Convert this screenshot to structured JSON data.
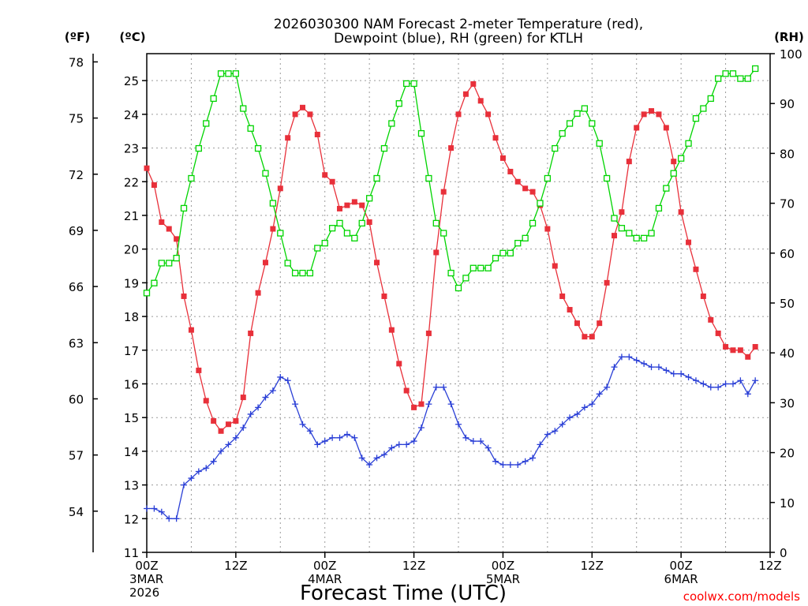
{
  "chart_data": {
    "type": "line",
    "title_lines": [
      "2026030300 NAM Forecast 2-meter Temperature (red),",
      "Dewpoint (blue), RH (green) for KTLH"
    ],
    "xlabel": "Forecast Time (UTC)",
    "credit": "coolwx.com/models",
    "unit_labels": {
      "fahrenheit": "(ºF)",
      "celsius": "(ºC)",
      "rh": "(RH)"
    },
    "x_unit": "forecast hour",
    "x_range": [
      0,
      84
    ],
    "x_ticks": [
      {
        "hour": 0,
        "lines": [
          "00Z",
          "3MAR",
          "2026"
        ]
      },
      {
        "hour": 12,
        "lines": [
          "12Z"
        ]
      },
      {
        "hour": 24,
        "lines": [
          "00Z",
          "4MAR"
        ]
      },
      {
        "hour": 36,
        "lines": [
          "12Z"
        ]
      },
      {
        "hour": 48,
        "lines": [
          "00Z",
          "5MAR"
        ]
      },
      {
        "hour": 60,
        "lines": [
          "12Z"
        ]
      },
      {
        "hour": 72,
        "lines": [
          "00Z",
          "6MAR"
        ]
      },
      {
        "hour": 84,
        "lines": [
          "12Z"
        ]
      }
    ],
    "y_celsius_range": [
      11,
      25.8
    ],
    "y_celsius_ticks": [
      11,
      12,
      13,
      14,
      15,
      16,
      17,
      18,
      19,
      20,
      21,
      22,
      23,
      24,
      25
    ],
    "y_fahrenheit_ticks": [
      54,
      57,
      60,
      63,
      66,
      69,
      72,
      75,
      78
    ],
    "y_rh_range": [
      0,
      100
    ],
    "y_rh_ticks": [
      0,
      10,
      20,
      30,
      40,
      50,
      60,
      70,
      80,
      90,
      100
    ],
    "grid": "dotted",
    "hours": [
      0,
      1,
      2,
      3,
      4,
      5,
      6,
      7,
      8,
      9,
      10,
      11,
      12,
      13,
      14,
      15,
      16,
      17,
      18,
      19,
      20,
      21,
      22,
      23,
      24,
      25,
      26,
      27,
      28,
      29,
      30,
      31,
      32,
      33,
      34,
      35,
      36,
      37,
      38,
      39,
      40,
      41,
      42,
      43,
      44,
      45,
      46,
      47,
      48,
      49,
      50,
      51,
      52,
      53,
      54,
      55,
      56,
      57,
      58,
      59,
      60,
      61,
      62,
      63,
      64,
      65,
      66,
      67,
      68,
      69,
      70,
      71,
      72,
      73,
      74,
      75,
      76,
      77,
      78,
      79,
      80,
      81,
      82,
      83,
      84
    ],
    "series": [
      {
        "key": "temperature",
        "unit": "°C",
        "axis": "celsius",
        "color": "#e8303a",
        "marker": "filled-square",
        "values": [
          22.4,
          21.9,
          20.8,
          20.6,
          20.3,
          18.6,
          17.6,
          16.4,
          15.5,
          14.9,
          14.6,
          14.8,
          14.9,
          15.6,
          17.5,
          18.7,
          19.6,
          20.6,
          21.8,
          23.3,
          24.0,
          24.2,
          24.0,
          23.4,
          22.2,
          22.0,
          21.2,
          21.3,
          21.4,
          21.3,
          20.8,
          19.6,
          18.6,
          17.6,
          16.6,
          15.8,
          15.3,
          15.4,
          17.5,
          19.9,
          21.7,
          23.0,
          24.0,
          24.6,
          24.9,
          24.4,
          24.0,
          23.3,
          22.7,
          22.3,
          22.0,
          21.8,
          21.7,
          21.3,
          20.6,
          19.5,
          18.6,
          18.2,
          17.8,
          17.4,
          17.4,
          17.8,
          19.0,
          20.4,
          21.1,
          22.6,
          23.6,
          24.0,
          24.1,
          24.0,
          23.6,
          22.6,
          21.1,
          20.2,
          19.4,
          18.6,
          17.9,
          17.5,
          17.1,
          17.0,
          17.0,
          16.8,
          17.1
        ]
      },
      {
        "key": "dewpoint",
        "unit": "°C",
        "axis": "celsius",
        "color": "#2a3fd6",
        "marker": "plus",
        "values": [
          12.3,
          12.3,
          12.2,
          12.0,
          12.0,
          13.0,
          13.2,
          13.4,
          13.5,
          13.7,
          14.0,
          14.2,
          14.4,
          14.7,
          15.1,
          15.3,
          15.6,
          15.8,
          16.2,
          16.1,
          15.4,
          14.8,
          14.6,
          14.2,
          14.3,
          14.4,
          14.4,
          14.5,
          14.4,
          13.8,
          13.6,
          13.8,
          13.9,
          14.1,
          14.2,
          14.2,
          14.3,
          14.7,
          15.4,
          15.9,
          15.9,
          15.4,
          14.8,
          14.4,
          14.3,
          14.3,
          14.1,
          13.7,
          13.6,
          13.6,
          13.6,
          13.7,
          13.8,
          14.2,
          14.5,
          14.6,
          14.8,
          15.0,
          15.1,
          15.3,
          15.4,
          15.7,
          15.9,
          16.5,
          16.8,
          16.8,
          16.7,
          16.6,
          16.5,
          16.5,
          16.4,
          16.3,
          16.3,
          16.2,
          16.1,
          16.0,
          15.9,
          15.9,
          16.0,
          16.0,
          16.1,
          15.7,
          16.1
        ]
      },
      {
        "key": "rh",
        "unit": "%",
        "axis": "rh",
        "color": "#00d400",
        "marker": "open-square",
        "values": [
          52,
          54,
          58,
          58,
          59,
          69,
          75,
          81,
          86,
          91,
          96,
          96,
          96,
          89,
          85,
          81,
          76,
          70,
          64,
          58,
          56,
          56,
          56,
          61,
          62,
          65,
          66,
          64,
          63,
          66,
          71,
          75,
          81,
          86,
          90,
          94,
          94,
          84,
          75,
          66,
          64,
          56,
          53,
          55,
          57,
          57,
          57,
          59,
          60,
          60,
          62,
          63,
          66,
          70,
          75,
          81,
          84,
          86,
          88,
          89,
          86,
          82,
          75,
          67,
          65,
          64,
          63,
          63,
          64,
          69,
          73,
          76,
          79,
          82,
          87,
          89,
          91,
          95,
          96,
          96,
          95,
          95,
          97
        ]
      }
    ]
  }
}
